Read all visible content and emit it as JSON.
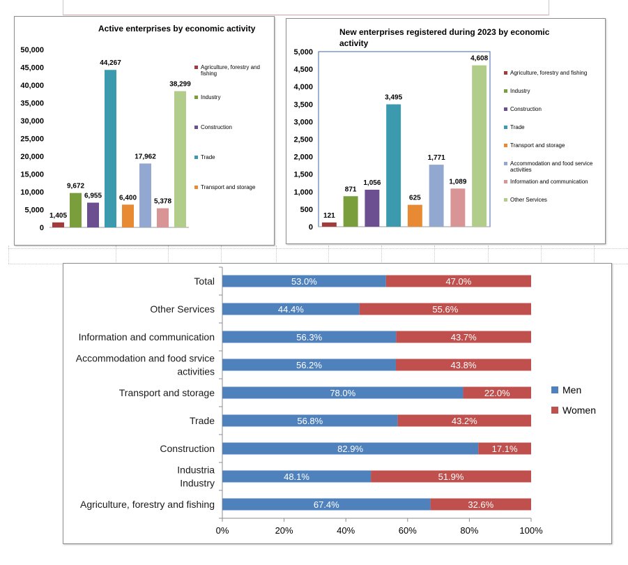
{
  "colors": {
    "agriculture": "#a33a3c",
    "industry": "#7b9e3d",
    "construction": "#6b4f91",
    "trade": "#3c9aae",
    "transport": "#e88a33",
    "accommodation": "#93a8d0",
    "information": "#d99595",
    "other": "#b2cd8a",
    "men": "#4f81bd",
    "women": "#c0504d"
  },
  "chart_data": [
    {
      "id": "active",
      "type": "bar",
      "title": "Active enterprises  by economic activity",
      "categories": [
        "Agriculture, forestry and fishing",
        "Industry",
        "Construction",
        "Trade",
        "Transport and storage",
        "Accommodation and food service activities",
        "Information and communication",
        "Other Services"
      ],
      "values": [
        1405,
        9672,
        6955,
        44267,
        6400,
        17962,
        5378,
        38299
      ],
      "value_labels": [
        "1,405",
        "9,672",
        "6,955",
        "44,267",
        "6,400",
        "17,962",
        "5,378",
        "38,299"
      ],
      "ylim": [
        0,
        50000
      ],
      "y_ticks": [
        "0",
        "5,000",
        "10,000",
        "15,000",
        "20,000",
        "25,000",
        "30,000",
        "35,000",
        "40,000",
        "45,000",
        "50,000"
      ],
      "legend": [
        "Agriculture, forestry and fishing",
        "Industry",
        "Construction",
        "Trade",
        "Transport and storage"
      ],
      "legend_position": "right",
      "grid": false
    },
    {
      "id": "new",
      "type": "bar",
      "title": "New enterprises registered during 2023 by economic activity",
      "title_lines": [
        "New enterprises registered during 2023 by economic",
        "activity"
      ],
      "categories": [
        "Agriculture, forestry and fishing",
        "Industry",
        "Construction",
        "Trade",
        "Transport and storage",
        "Accommodation and food service activities",
        "Information and communication",
        "Other Services"
      ],
      "values": [
        121,
        871,
        1056,
        3495,
        625,
        1771,
        1089,
        4608
      ],
      "value_labels": [
        "121",
        "871",
        "1,056",
        "3,495",
        "625",
        "1,771",
        "1,089",
        "4,608"
      ],
      "ylim": [
        0,
        5000
      ],
      "y_ticks": [
        "0",
        "500",
        "1,000",
        "1,500",
        "2,000",
        "2,500",
        "3,000",
        "3,500",
        "4,000",
        "4,500",
        "5,000"
      ],
      "legend": [
        "Agriculture, forestry and fishing",
        "Industry",
        "Construction",
        "Trade",
        "Transport and storage",
        "Accommodation and food service activities",
        "Information and communication",
        "Other Services"
      ],
      "legend_position": "right",
      "grid": false
    },
    {
      "id": "gender",
      "type": "bar",
      "orientation": "horizontal",
      "stacked": "percent",
      "categories": [
        "Total",
        "Other Services",
        "Information and communication",
        "Accommodation and food srvice activities",
        "Transport and storage",
        "Trade",
        "Construction",
        "Industria Industry",
        "Agriculture, forestry and fishing"
      ],
      "category_lines": [
        [
          "Total"
        ],
        [
          "Other Services"
        ],
        [
          "Information and communication"
        ],
        [
          "Accommodation and food srvice",
          "activities"
        ],
        [
          "Transport and storage"
        ],
        [
          "Trade"
        ],
        [
          "Construction"
        ],
        [
          "Industria",
          "Industry"
        ],
        [
          "Agriculture, forestry and fishing"
        ]
      ],
      "series": [
        {
          "name": "Men",
          "values": [
            53.0,
            44.4,
            56.3,
            56.2,
            78.0,
            56.8,
            82.9,
            48.1,
            67.4
          ],
          "labels": [
            "53.0%",
            "44.4%",
            "56.3%",
            "56.2%",
            "78.0%",
            "56.8%",
            "82.9%",
            "48.1%",
            "67.4%"
          ]
        },
        {
          "name": "Women",
          "values": [
            47.0,
            55.6,
            43.7,
            43.8,
            22.0,
            43.2,
            17.1,
            51.9,
            32.6
          ],
          "labels": [
            "47.0%",
            "55.6%",
            "43.7%",
            "43.8%",
            "22.0%",
            "43.2%",
            "17.1%",
            "51.9%",
            "32.6%"
          ]
        }
      ],
      "xlim": [
        0,
        100
      ],
      "x_ticks": [
        "0%",
        "20%",
        "40%",
        "60%",
        "80%",
        "100%"
      ],
      "legend_position": "right",
      "grid": false
    }
  ]
}
